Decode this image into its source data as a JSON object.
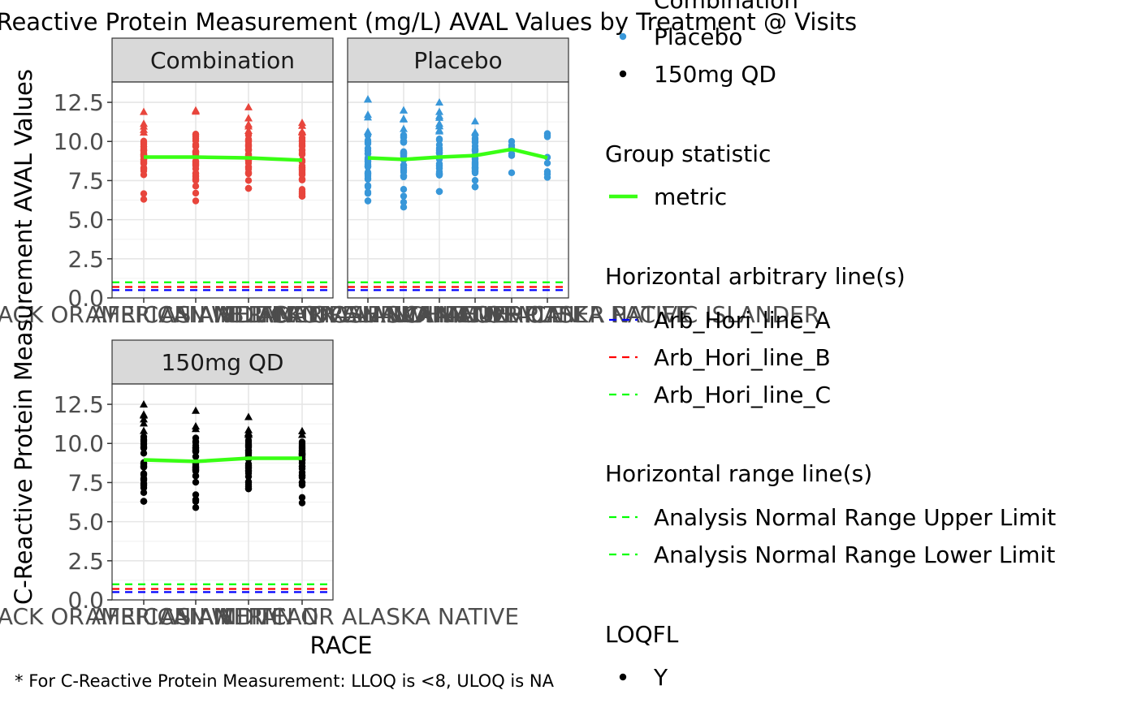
{
  "title": "C-Reactive Protein Measurement (mg/L) AVAL Values by Treatment @ Visits",
  "caption": "* For C-Reactive Protein Measurement: LLOQ is <8, ULOQ is NA",
  "chart_data": {
    "type": "scatter",
    "title": "C-Reactive Protein Measurement (mg/L) AVAL Values by Treatment @ Visits",
    "xlabel": "RACE",
    "ylabel": "C-Reactive Protein Measurement AVAL Values",
    "ylim": [
      0,
      13.8
    ],
    "y_ticks": [
      0.0,
      2.5,
      5.0,
      7.5,
      10.0,
      12.5
    ],
    "y_tick_labels": [
      "0.0",
      "2.5",
      "5.0",
      "7.5",
      "10.0",
      "12.5"
    ],
    "grid": true,
    "legend_position": "right",
    "reference_lines": [
      {
        "name": "Arb_Hori_line_A",
        "y": 0.5,
        "color": "#0000ff",
        "dash": true
      },
      {
        "name": "Arb_Hori_line_B",
        "y": 0.7,
        "color": "#ff0000",
        "dash": true
      },
      {
        "name": "Arb_Hori_line_C",
        "y": 1.0,
        "color": "#00ff00",
        "dash": true
      }
    ],
    "panels": [
      {
        "name": "Combination",
        "color": "#e8453c",
        "categories": [
          "BLACK OR AFRICAN AMERICAN",
          "ASIAN",
          "WHITE",
          "AMERICAN INDIAN OR ALASKA NATIVE"
        ],
        "mean": [
          9.0,
          9.0,
          8.95,
          8.8
        ],
        "min": [
          6.3,
          6.2,
          7.0,
          6.5
        ],
        "max": [
          11.9,
          12.0,
          12.2,
          11.2
        ],
        "triangles_above": 10.5
      },
      {
        "name": "Placebo",
        "color": "#3897d9",
        "categories": [
          "ASIAN",
          "BLACK OR AFRICAN AMERICAN",
          "WHITE",
          "AMERICAN INDIAN OR ALASKA NATIVE",
          "MULTIPLE",
          "NATIVE HAWAIIAN OR OTHER PACIFIC ISLANDER"
        ],
        "mean": [
          8.95,
          8.85,
          9.0,
          9.1,
          9.5,
          8.95
        ],
        "min": [
          6.2,
          5.8,
          6.8,
          7.1,
          8.0,
          7.7
        ],
        "max": [
          12.7,
          12.0,
          12.5,
          11.3,
          10.0,
          10.5
        ],
        "triangles_above": 10.5
      },
      {
        "name": "150mg QD",
        "color": "#000000",
        "categories": [
          "BLACK OR AFRICAN AMERICAN",
          "ASIAN",
          "WHITE",
          "AMERICAN INDIAN OR ALASKA NATIVE"
        ],
        "mean": [
          8.95,
          8.85,
          9.05,
          9.05
        ],
        "min": [
          6.3,
          5.9,
          7.1,
          6.2
        ],
        "max": [
          12.5,
          12.1,
          11.7,
          10.8
        ],
        "triangles_above": 10.5
      }
    ],
    "statistic_line": {
      "name": "metric",
      "color": "#39ff14"
    }
  },
  "legend": {
    "treatment_items": [
      "Combination",
      "Placebo",
      "150mg QD"
    ],
    "treatment_colors": [
      "#e8453c",
      "#3897d9",
      "#000000"
    ],
    "group_title": "Group statistic",
    "group_items": [
      "metric"
    ],
    "arb_title": "Horizontal arbitrary line(s)",
    "arb_items": [
      "Arb_Hori_line_A",
      "Arb_Hori_line_B",
      "Arb_Hori_line_C"
    ],
    "arb_colors": [
      "#0000ff",
      "#ff0000",
      "#00ff00"
    ],
    "range_title": "Horizontal range line(s)",
    "range_items": [
      "Analysis Normal Range Upper Limit",
      "Analysis Normal Range Lower Limit"
    ],
    "range_colors": [
      "#00ff00",
      "#00ff00"
    ],
    "loq_title": "LOQFL",
    "loq_items": [
      "Y"
    ]
  }
}
